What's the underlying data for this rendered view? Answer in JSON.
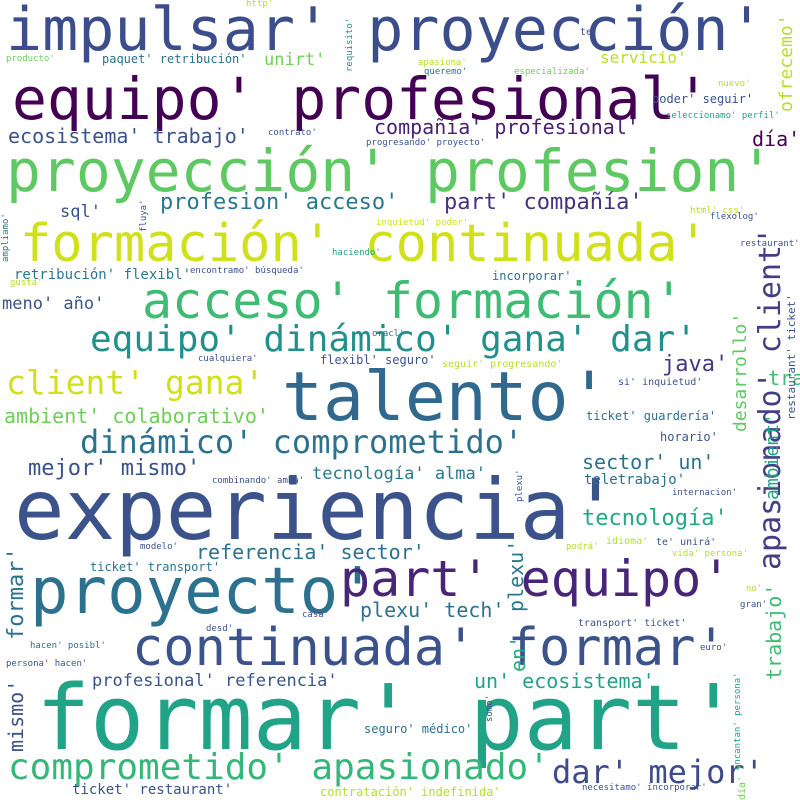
{
  "words": [
    {
      "text": "impulsar' proyección'",
      "color": "#3b4d8b"
    },
    {
      "text": "equipo' profesional'",
      "color": "#440154"
    },
    {
      "text": "proyección' profesion'",
      "color": "#5ec962"
    },
    {
      "text": "formación' continuada'",
      "color": "#d0e11c"
    },
    {
      "text": "acceso' formación'",
      "color": "#3fbc73"
    },
    {
      "text": "equipo' dinámico' gana' dar'",
      "color": "#21918c"
    },
    {
      "text": "client' gana'",
      "color": "#d0e11c"
    },
    {
      "text": "talento'",
      "color": "#31688e"
    },
    {
      "text": "dinámico' comprometido'",
      "color": "#2c728e"
    },
    {
      "text": "experiencia'",
      "color": "#3b528b"
    },
    {
      "text": "proyecto'",
      "color": "#2c728e"
    },
    {
      "text": "part' equipo'",
      "color": "#482677"
    },
    {
      "text": "continuada' formar'",
      "color": "#3b528b"
    },
    {
      "text": "formar' part'",
      "color": "#20a386"
    },
    {
      "text": "comprometido' apasionado'",
      "color": "#35b779"
    },
    {
      "text": "dar' mejor'",
      "color": "#3e4a89"
    },
    {
      "text": "apasionado' client'",
      "color": "#433e85"
    },
    {
      "text": "ecosistema' trabajo'",
      "color": "#3b528b"
    },
    {
      "text": "compañía' profesional'",
      "color": "#482173"
    },
    {
      "text": "día'",
      "color": "#440154"
    },
    {
      "text": "profesion' acceso'",
      "color": "#2a788e"
    },
    {
      "text": "part' compañía'",
      "color": "#46327e"
    },
    {
      "text": "sql'",
      "color": "#3b528b"
    },
    {
      "text": "meno' año'",
      "color": "#3b528b"
    },
    {
      "text": "java'",
      "color": "#453781"
    },
    {
      "text": "ambient' colaborativo'",
      "color": "#6ece58"
    },
    {
      "text": "desarrollo'",
      "color": "#5ec962"
    },
    {
      "text": "ambient'",
      "color": "#20a386"
    },
    {
      "text": "trabajo'",
      "color": "#3fbc73"
    },
    {
      "text": "mejor' mismo'",
      "color": "#3b528b"
    },
    {
      "text": "sector' un'",
      "color": "#2c728e"
    },
    {
      "text": "tecnología' alma'",
      "color": "#2a788e"
    },
    {
      "text": "tecnología'",
      "color": "#22a884"
    },
    {
      "text": "referencia' sector'",
      "color": "#2c728e"
    },
    {
      "text": "formar'",
      "color": "#2c728e"
    },
    {
      "text": "mismo'",
      "color": "#3b528b"
    },
    {
      "text": "en'",
      "color": "#25ab82"
    },
    {
      "text": "plexu'",
      "color": "#2a788e"
    },
    {
      "text": "plexu' tech'",
      "color": "#2c728e"
    },
    {
      "text": "profesional' referencia'",
      "color": "#3b528b"
    },
    {
      "text": "un' ecosistema'",
      "color": "#20a386"
    },
    {
      "text": "teletrabajo'",
      "color": "#2c728e"
    },
    {
      "text": "servicio'",
      "color": "#b5de2b"
    },
    {
      "text": "unirt'",
      "color": "#6ece58"
    },
    {
      "text": "ofrecemo'",
      "color": "#b5de2b"
    },
    {
      "text": "retribución' flexibl'",
      "color": "#2a788e"
    },
    {
      "text": "incorporar'",
      "color": "#2c728e"
    },
    {
      "text": "horario'",
      "color": "#3b528b"
    },
    {
      "text": "poder' seguir'",
      "color": "#3b528b"
    },
    {
      "text": "ticket' guardería'",
      "color": "#2c728e"
    },
    {
      "text": "ticket' transport'",
      "color": "#2c728e"
    },
    {
      "text": "flexibl' seguro'",
      "color": "#3b528b"
    },
    {
      "text": "seguro' médico'",
      "color": "#2c728e"
    },
    {
      "text": "ticket' restaurant'",
      "color": "#3b528b"
    },
    {
      "text": "contratación' indefinida'",
      "color": "#b5de2b"
    },
    {
      "text": "paquet' retribución'",
      "color": "#2c728e"
    },
    {
      "text": "http'",
      "color": "#b5de2b"
    },
    {
      "text": "te'",
      "color": "#3b528b"
    },
    {
      "text": "producto'",
      "color": "#6ece58"
    },
    {
      "text": "requisito'",
      "color": "#21918c"
    },
    {
      "text": "apasiona'",
      "color": "#b5de2b"
    },
    {
      "text": "especializada'",
      "color": "#6ece58"
    },
    {
      "text": "queremo'",
      "color": "#2c728e"
    },
    {
      "text": "nuevo'",
      "color": "#b5de2b"
    },
    {
      "text": "seleccionamo' perfil'",
      "color": "#20a386"
    },
    {
      "text": "contrato'",
      "color": "#3b528b"
    },
    {
      "text": "progresando' proyecto'",
      "color": "#3b528b"
    },
    {
      "text": "inquietud' poder'",
      "color": "#d0e11c"
    },
    {
      "text": "flexolog'",
      "color": "#3b528b"
    },
    {
      "text": "html' css'",
      "color": "#b5de2b"
    },
    {
      "text": "fluya'",
      "color": "#3b528b"
    },
    {
      "text": "ampliamo'",
      "color": "#2c728e"
    },
    {
      "text": "encontramo' búsqueda'",
      "color": "#3b528b"
    },
    {
      "text": "haciendo'",
      "color": "#20a386"
    },
    {
      "text": "gusta'",
      "color": "#b5de2b"
    },
    {
      "text": "oracl'",
      "color": "#2c728e"
    },
    {
      "text": "cualquiera'",
      "color": "#3b528b"
    },
    {
      "text": "seguir' progresando'",
      "color": "#b5de2b"
    },
    {
      "text": "si' inquietud'",
      "color": "#3b528b"
    },
    {
      "text": "restaurant' ticket'",
      "color": "#3b528b"
    },
    {
      "text": "combinando' amba'",
      "color": "#3b528b"
    },
    {
      "text": "plexu'",
      "color": "#3b528b"
    },
    {
      "text": "internacion'",
      "color": "#3b528b"
    },
    {
      "text": "idioma'",
      "color": "#b5de2b"
    },
    {
      "text": "podrá'",
      "color": "#b5de2b"
    },
    {
      "text": "te' unirá'",
      "color": "#3b528b"
    },
    {
      "text": "vida' persona'",
      "color": "#b5de2b"
    },
    {
      "text": "modelo'",
      "color": "#3b528b"
    },
    {
      "text": "casa'",
      "color": "#3b528b"
    },
    {
      "text": "no'",
      "color": "#b5de2b"
    },
    {
      "text": "gran'",
      "color": "#3b528b"
    },
    {
      "text": "desd'",
      "color": "#3b528b"
    },
    {
      "text": "hacen' posibl'",
      "color": "#2c728e"
    },
    {
      "text": "persona' hacen'",
      "color": "#3b528b"
    },
    {
      "text": "transport' ticket'",
      "color": "#3b528b"
    },
    {
      "text": "euro'",
      "color": "#3b528b"
    },
    {
      "text": "somo'",
      "color": "#3b528b"
    },
    {
      "text": "encantan' persona'",
      "color": "#20a386"
    },
    {
      "text": "necesitamo' incorporar'",
      "color": "#3b528b"
    },
    {
      "text": "día' '",
      "color": "#6ece58"
    }
  ]
}
